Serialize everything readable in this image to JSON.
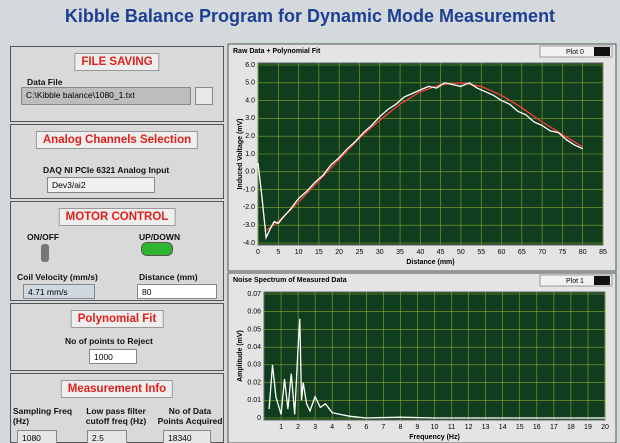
{
  "header": {
    "title": "Kibble Balance Program for Dynamic Mode Measurement"
  },
  "file_saving": {
    "heading": "FILE SAVING",
    "label": "Data File",
    "path": "C:\\Kibble balance\\1080_1.txt"
  },
  "analog": {
    "heading": "Analog Channels Selection",
    "label": "DAQ NI PCIe 6321 Analog Input",
    "channel": "Dev3/ai2"
  },
  "motor": {
    "heading": "MOTOR CONTROL",
    "switch1": "ON/OFF",
    "switch2": "UP/DOWN",
    "velocity_label": "Coil Velocity (mm/s)",
    "velocity": "4.71 mm/s",
    "distance_label": "Distance (mm)",
    "distance": "80"
  },
  "poly": {
    "heading": "Polynomial Fit",
    "label": "No of points to Reject",
    "value": "1000"
  },
  "measurement": {
    "heading": "Measurement Info",
    "columns": [
      {
        "label": "Sampling Freq (Hz)",
        "value": "1080"
      },
      {
        "label": "Low pass filter cutoff freq (Hz)",
        "value": "2.5"
      },
      {
        "label": "No of Data Points Acquired",
        "value": "18340"
      }
    ]
  },
  "charts": [
    {
      "type": "line",
      "title": "Raw Data + Polynomial Fit",
      "legend": "Plot 0",
      "x_label": "Distance (mm)",
      "y_label": "Induced Voltage (mV)",
      "xlim": [
        0,
        85
      ],
      "xticks": [
        0,
        5,
        10,
        15,
        20,
        25,
        30,
        35,
        40,
        45,
        50,
        55,
        60,
        65,
        70,
        75,
        80,
        85
      ],
      "ylim": [
        -4,
        6
      ],
      "yticks": [
        {
          "value": -4,
          "label": "-4.0"
        },
        {
          "value": -3,
          "label": "-3.0"
        },
        {
          "value": -2,
          "label": "-2.0"
        },
        {
          "value": -1,
          "label": "-1.0"
        },
        {
          "value": 0,
          "label": "0.0"
        },
        {
          "value": 1,
          "label": "1.0"
        },
        {
          "value": 2,
          "label": "2.0"
        },
        {
          "value": 3,
          "label": "3.0"
        },
        {
          "value": 4,
          "label": "4.0"
        },
        {
          "value": 5,
          "label": "5.0"
        },
        {
          "value": 6,
          "label": "6.0"
        }
      ],
      "grid": true,
      "series": [
        {
          "color": "#ff3b3b",
          "x": [
            2,
            5,
            10,
            15,
            20,
            25,
            30,
            35,
            40,
            45,
            50,
            55,
            60,
            65,
            70,
            75,
            80
          ],
          "values": [
            -3.3,
            -2.8,
            -1.7,
            -0.5,
            0.7,
            1.9,
            2.9,
            3.8,
            4.5,
            4.9,
            5.0,
            4.8,
            4.3,
            3.6,
            2.8,
            2.1,
            1.4
          ]
        },
        {
          "color": "#ffffff",
          "x": [
            0,
            1,
            2,
            3,
            4,
            5,
            6,
            8,
            10,
            12,
            14,
            16,
            18,
            20,
            22,
            24,
            26,
            28,
            30,
            32,
            34,
            36,
            38,
            40,
            42,
            44,
            46,
            48,
            50,
            52,
            54,
            56,
            58,
            60,
            62,
            64,
            66,
            68,
            70,
            72,
            74,
            76,
            78,
            80
          ],
          "values": [
            0.5,
            -1.5,
            -3.7,
            -3.2,
            -2.8,
            -2.9,
            -2.6,
            -2.1,
            -1.5,
            -1.1,
            -0.6,
            -0.2,
            0.4,
            0.8,
            1.3,
            1.7,
            2.2,
            2.6,
            3.1,
            3.5,
            3.8,
            4.2,
            4.4,
            4.6,
            4.8,
            4.7,
            5.0,
            4.9,
            4.8,
            5.0,
            4.7,
            4.5,
            4.3,
            4.0,
            3.8,
            3.4,
            3.2,
            2.8,
            2.6,
            2.3,
            2.2,
            1.8,
            1.5,
            1.3
          ]
        }
      ]
    },
    {
      "type": "line",
      "title": "Noise Spectrum of Measured Data",
      "legend": "Plot 1",
      "x_label": "Frequency (Hz)",
      "y_label": "Amplitude (mV)",
      "xlim": [
        0,
        20
      ],
      "xticks": [
        1,
        2,
        3,
        4,
        5,
        6,
        7,
        8,
        9,
        10,
        11,
        12,
        13,
        14,
        15,
        16,
        17,
        18,
        19,
        20
      ],
      "ylim": [
        0,
        0.07
      ],
      "yticks": [
        0,
        0.01,
        0.02,
        0.03,
        0.04,
        0.05,
        0.06,
        0.07
      ],
      "grid": true,
      "series": [
        {
          "color": "#ffffff",
          "x": [
            0.3,
            0.5,
            0.7,
            1,
            1.2,
            1.4,
            1.6,
            1.8,
            2,
            2.1,
            2.2,
            2.3,
            2.5,
            2.7,
            3,
            3.3,
            3.6,
            4,
            4.5,
            5,
            6,
            8,
            10,
            12,
            15,
            18,
            20
          ],
          "values": [
            0.005,
            0.03,
            0.012,
            0.002,
            0.022,
            0.005,
            0.025,
            0.002,
            0.04,
            0.056,
            0.01,
            0.02,
            0.008,
            0.004,
            0.012,
            0.006,
            0.008,
            0.003,
            0.002,
            0.001,
            0,
            0.0005,
            0,
            0,
            0,
            0,
            0
          ]
        }
      ]
    }
  ]
}
